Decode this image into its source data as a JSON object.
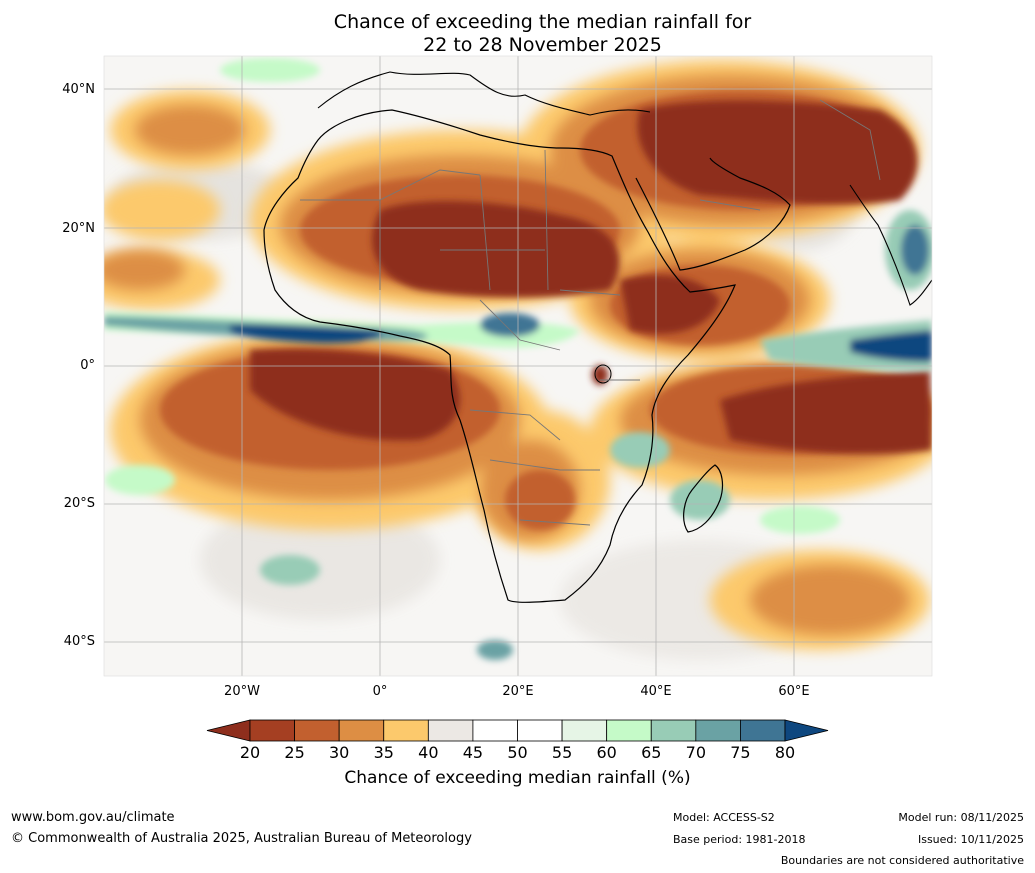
{
  "title": {
    "line1": "Chance of exceeding the median rainfall for",
    "line2": "22 to 28 November 2025"
  },
  "map": {
    "lat_labels": [
      "40°N",
      "20°N",
      "0°",
      "20°S",
      "40°S"
    ],
    "lon_labels": [
      "20°W",
      "0°",
      "20°E",
      "40°E",
      "60°E"
    ],
    "features": [
      "Africa",
      "Arabian Peninsula",
      "Madagascar",
      "India",
      "Mediterranean Sea",
      "Red Sea",
      "Lake Victoria"
    ]
  },
  "colorbar": {
    "label": "Chance of exceeding median rainfall (%)",
    "ticks": [
      "20",
      "25",
      "30",
      "35",
      "40",
      "45",
      "50",
      "55",
      "60",
      "65",
      "70",
      "75",
      "80"
    ],
    "colors": [
      "#8e2e1d",
      "#a53f22",
      "#c2602f",
      "#dd8e44",
      "#fcc96c",
      "#ece8e4",
      "#ffffff",
      "#ffffff",
      "#e6f5e6",
      "#c5fac8",
      "#98ccb6",
      "#6aa2a4",
      "#3f7594",
      "#0e477f"
    ]
  },
  "footer": {
    "website": "www.bom.gov.au/climate",
    "copyright": "© Commonwealth of Australia 2025, Australian Bureau of Meteorology",
    "model": "Model: ACCESS-S2",
    "base_period": "Base period: 1981-2018",
    "model_run": "Model run: 08/11/2025",
    "issued": "Issued: 10/11/2025",
    "disclaimer": "Boundaries are not considered authoritative"
  }
}
